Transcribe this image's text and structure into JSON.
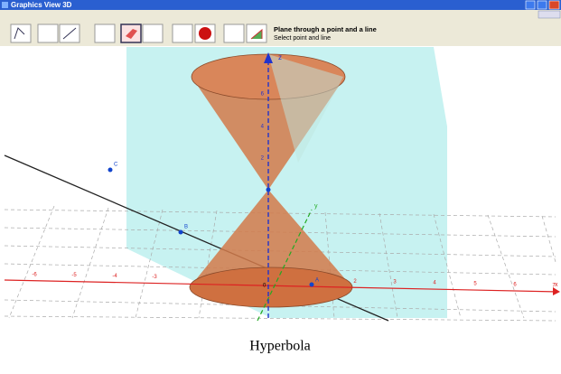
{
  "window": {
    "title": "Graphics View 3D"
  },
  "tool_help": {
    "name": "Plane through a point and a line",
    "hint": "Select point and line"
  },
  "view": {
    "axis_labels": {
      "z": "z",
      "y": "y",
      "x": "x"
    },
    "points": [
      "C",
      "B",
      "A"
    ],
    "x_ticks": [
      "-6",
      "-5",
      "-4",
      "-3",
      "2",
      "3",
      "4",
      "5",
      "6",
      "7"
    ],
    "z_ticks": [
      "6",
      "4",
      "2"
    ],
    "origin": "0"
  },
  "caption": "Hyperbola"
}
